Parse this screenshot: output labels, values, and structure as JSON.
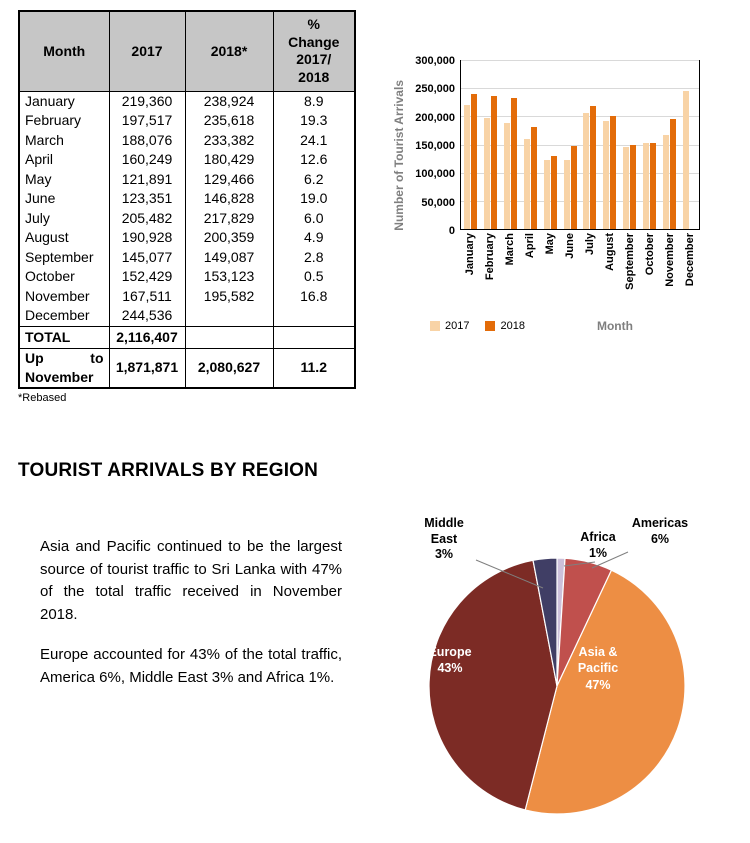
{
  "table": {
    "headers": {
      "month": "Month",
      "y2017": "2017",
      "y2018": "2018*",
      "change": "%\nChange\n2017/\n2018"
    },
    "rows": [
      {
        "month": "January",
        "y2017": "219,360",
        "y2018": "238,924",
        "change": "8.9"
      },
      {
        "month": "February",
        "y2017": "197,517",
        "y2018": "235,618",
        "change": "19.3"
      },
      {
        "month": "March",
        "y2017": "188,076",
        "y2018": "233,382",
        "change": "24.1"
      },
      {
        "month": "April",
        "y2017": "160,249",
        "y2018": "180,429",
        "change": "12.6"
      },
      {
        "month": "May",
        "y2017": "121,891",
        "y2018": "129,466",
        "change": "6.2"
      },
      {
        "month": "June",
        "y2017": "123,351",
        "y2018": "146,828",
        "change": "19.0"
      },
      {
        "month": "July",
        "y2017": "205,482",
        "y2018": "217,829",
        "change": "6.0"
      },
      {
        "month": "August",
        "y2017": "190,928",
        "y2018": "200,359",
        "change": "4.9"
      },
      {
        "month": "September",
        "y2017": "145,077",
        "y2018": "149,087",
        "change": "2.8"
      },
      {
        "month": "October",
        "y2017": "152,429",
        "y2018": "153,123",
        "change": "0.5"
      },
      {
        "month": "November",
        "y2017": "167,511",
        "y2018": "195,582",
        "change": "16.8"
      },
      {
        "month": "December",
        "y2017": "244,536",
        "y2018": "",
        "change": ""
      }
    ],
    "total": {
      "label": "TOTAL",
      "y2017": "2,116,407",
      "y2018": "",
      "change": ""
    },
    "up_to": {
      "label": "Up to November",
      "y2017": "1,871,871",
      "y2018": "2,080,627",
      "change": "11.2"
    },
    "footnote": "*Rebased"
  },
  "chart_data": [
    {
      "type": "bar",
      "title": "",
      "categories": [
        "January",
        "February",
        "March",
        "April",
        "May",
        "June",
        "July",
        "August",
        "September",
        "October",
        "November",
        "December"
      ],
      "series": [
        {
          "name": "2017",
          "color": "#F8D3A6",
          "values": [
            219360,
            197517,
            188076,
            160249,
            121891,
            123351,
            205482,
            190928,
            145077,
            152429,
            167511,
            244536
          ]
        },
        {
          "name": "2018",
          "color": "#E36C09",
          "values": [
            238924,
            235618,
            233382,
            180429,
            129466,
            146828,
            217829,
            200359,
            149087,
            153123,
            195582,
            null
          ]
        }
      ],
      "xlabel": "Month",
      "ylabel": "Number of Tourist Arrivals",
      "ylim": [
        0,
        300000
      ],
      "yticks": [
        0,
        50000,
        100000,
        150000,
        200000,
        250000,
        300000
      ],
      "ytick_labels": [
        "0",
        "50,000",
        "100,000",
        "150,000",
        "200,000",
        "250,000",
        "300,000"
      ],
      "grid": true,
      "legend_position": "bottom-left"
    },
    {
      "type": "pie",
      "title": "",
      "direction": "clockwise",
      "start": "top",
      "slices": [
        {
          "label": "Africa",
          "pct": 1,
          "pct_label": "1%",
          "color": "#CCC0DA"
        },
        {
          "label": "Americas",
          "pct": 6,
          "pct_label": "6%",
          "color": "#C0504D"
        },
        {
          "label": "Asia & Pacific",
          "pct": 47,
          "pct_label": "47%",
          "color": "#ED8E44"
        },
        {
          "label": "Europe",
          "pct": 43,
          "pct_label": "43%",
          "color": "#7C2B25"
        },
        {
          "label": "Middle East",
          "pct": 3,
          "pct_label": "3%",
          "color": "#403E65"
        }
      ]
    }
  ],
  "region_section": {
    "heading": "TOURIST ARRIVALS BY REGION",
    "para1": "Asia and Pacific continued to be the largest source of tourist traffic to Sri Lanka with 47% of the total traffic received in November 2018.",
    "para2": "Europe accounted for 43% of the total traffic, America 6%, Middle East 3% and Africa 1%."
  }
}
